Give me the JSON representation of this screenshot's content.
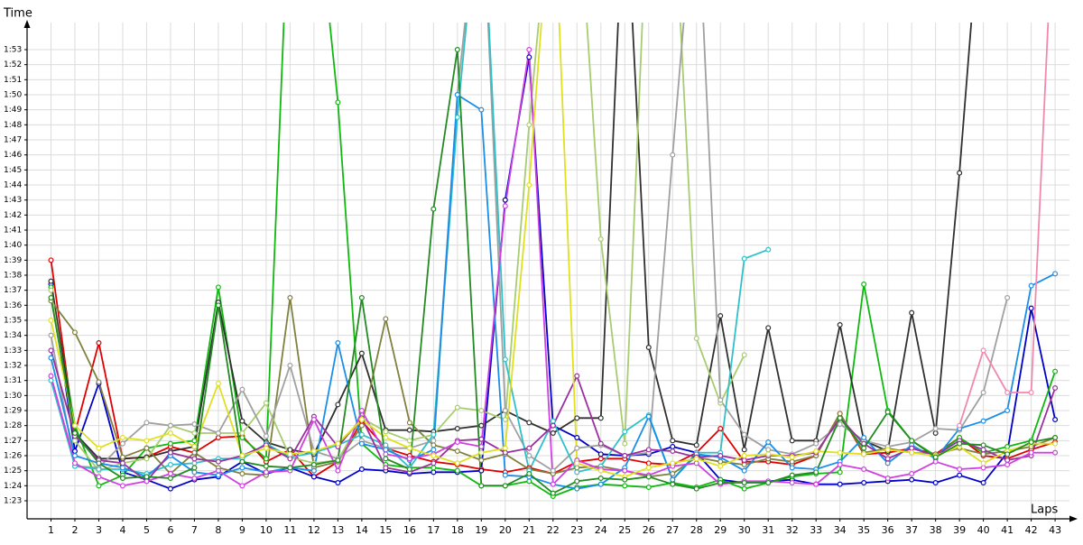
{
  "chart_data": {
    "type": "line",
    "y_label": "Time",
    "x_label": "Laps",
    "grid": true,
    "markers": true,
    "xlim": [
      0,
      43.6
    ],
    "ylim": [
      81.8,
      114.8
    ],
    "xticks": [
      1,
      2,
      3,
      4,
      5,
      6,
      7,
      8,
      9,
      10,
      11,
      12,
      13,
      14,
      15,
      16,
      17,
      18,
      19,
      20,
      21,
      22,
      23,
      24,
      25,
      26,
      27,
      28,
      29,
      30,
      31,
      32,
      33,
      34,
      35,
      36,
      37,
      38,
      39,
      40,
      41,
      42,
      43
    ],
    "yticks": [
      {
        "value": 83,
        "label": "1:23"
      },
      {
        "value": 84,
        "label": "1:24"
      },
      {
        "value": 85,
        "label": "1:25"
      },
      {
        "value": 86,
        "label": "1:26"
      },
      {
        "value": 87,
        "label": "1:27"
      },
      {
        "value": 88,
        "label": "1:28"
      },
      {
        "value": 89,
        "label": "1:29"
      },
      {
        "value": 90,
        "label": "1:30"
      },
      {
        "value": 91,
        "label": "1:31"
      },
      {
        "value": 92,
        "label": "1:32"
      },
      {
        "value": 93,
        "label": "1:33"
      },
      {
        "value": 94,
        "label": "1:34"
      },
      {
        "value": 95,
        "label": "1:35"
      },
      {
        "value": 96,
        "label": "1:36"
      },
      {
        "value": 97,
        "label": "1:37"
      },
      {
        "value": 98,
        "label": "1:38"
      },
      {
        "value": 99,
        "label": "1:39"
      },
      {
        "value": 100,
        "label": "1:40"
      },
      {
        "value": 101,
        "label": "1:41"
      },
      {
        "value": 102,
        "label": "1:42"
      },
      {
        "value": 103,
        "label": "1:43"
      },
      {
        "value": 104,
        "label": "1:44"
      },
      {
        "value": 105,
        "label": "1:45"
      },
      {
        "value": 106,
        "label": "1:46"
      },
      {
        "value": 107,
        "label": "1:47"
      },
      {
        "value": 108,
        "label": "1:48"
      },
      {
        "value": 109,
        "label": "1:49"
      },
      {
        "value": 110,
        "label": "1:50"
      },
      {
        "value": 111,
        "label": "1:51"
      },
      {
        "value": 112,
        "label": "1:52"
      },
      {
        "value": 113,
        "label": "1:53"
      }
    ],
    "x": [
      1,
      2,
      3,
      4,
      5,
      6,
      7,
      8,
      9,
      10,
      11,
      12,
      13,
      14,
      15,
      16,
      17,
      18,
      19,
      20,
      21,
      22,
      23,
      24,
      25,
      26,
      27,
      28,
      29,
      30,
      31,
      32,
      33,
      34,
      35,
      36,
      37,
      38,
      39,
      40,
      41,
      42,
      43
    ],
    "series": [
      {
        "color": "#e00000",
        "values": [
          99,
          87.5,
          93.5,
          85.8,
          85.9,
          86.6,
          86.2,
          87.2,
          87.3,
          85.6,
          86.4,
          84.6,
          85.6,
          88.3,
          86.5,
          86,
          85.6,
          85.4,
          85.1,
          84.9,
          85.2,
          84.8,
          85.6,
          85.8,
          85.8,
          85.5,
          85.4,
          86.2,
          87.8,
          85.6,
          85.6,
          85.4,
          86,
          88.8,
          86.1,
          86.2,
          86.5,
          86.1,
          87.2,
          86,
          85.8,
          86.4,
          86.9
        ]
      },
      {
        "color": "#0000c8",
        "values": [
          97.4,
          86.3,
          90.8,
          84.9,
          84.4,
          83.8,
          84.4,
          84.6,
          85.6,
          84.8,
          85.2,
          84.6,
          84.2,
          85.1,
          85,
          84.8,
          84.9,
          84.9,
          85,
          103,
          112.5,
          88,
          87.2,
          86.1,
          86,
          86.1,
          86.6,
          86.2,
          84.4,
          84.2,
          84.3,
          84.4,
          84.1,
          84.1,
          84.2,
          84.3,
          84.4,
          84.2,
          84.7,
          84.2,
          86.2,
          95.8,
          88.4
        ]
      },
      {
        "color": "#10b810",
        "values": [
          97.2,
          88,
          84,
          84.7,
          86.5,
          86.8,
          87,
          97.2,
          87.2,
          85.8,
          125,
          125,
          109.5,
          86.8,
          85.4,
          85.2,
          85.2,
          85,
          84,
          84,
          84.3,
          83.3,
          83.9,
          84.1,
          84,
          83.9,
          84.2,
          83.9,
          84.4,
          83.8,
          84.2,
          84.6,
          84.8,
          84.9,
          97.4,
          89,
          87,
          86,
          87.2,
          86.2,
          86.6,
          87,
          91.6
        ]
      },
      {
        "color": "#303030",
        "values": [
          97.6,
          87.5,
          85.8,
          85.8,
          85.9,
          86.3,
          86.6,
          96.2,
          88.3,
          86.9,
          86.4,
          86.1,
          89.4,
          92.8,
          87.7,
          87.7,
          87.6,
          87.8,
          88,
          89,
          88.2,
          87.5,
          88.5,
          88.5,
          125,
          93.2,
          87,
          86.7,
          95.3,
          86.4,
          94.5,
          87,
          87,
          94.7,
          87,
          86.3,
          95.5,
          87.5,
          104.8,
          125,
          null,
          null,
          null
        ]
      },
      {
        "color": "#808040",
        "values": [
          96.3,
          94.2,
          90.9,
          85.9,
          86.5,
          84.8,
          86.2,
          85.2,
          84.8,
          84.7,
          96.5,
          85.2,
          85.6,
          88,
          95.1,
          88.2,
          86.7,
          86.3,
          85.7,
          86.1,
          85.1,
          84.8,
          85.2,
          85.3,
          85,
          84.6,
          84.8,
          85.9,
          85.6,
          85.4,
          85.8,
          85.6,
          86,
          88.8,
          86.2,
          86.5,
          86.2,
          86.1,
          86.5,
          86.1,
          86.3,
          86.6,
          87.2
        ]
      },
      {
        "color": "#a8cc70",
        "values": [
          97,
          87,
          85,
          85.5,
          85.8,
          88,
          87.5,
          87.5,
          87.5,
          89.5,
          85.9,
          85.5,
          85.7,
          88.5,
          87.6,
          87,
          87.4,
          89.2,
          89,
          88.4,
          108,
          125,
          125,
          100.4,
          86.8,
          125,
          125,
          93.8,
          89.5,
          92.7,
          null,
          null,
          null,
          null,
          null,
          null,
          null,
          null,
          null,
          null,
          null,
          null,
          null
        ]
      },
      {
        "color": "#a0a0a0",
        "values": [
          94,
          85.3,
          85.2,
          86.8,
          88.2,
          88,
          88.1,
          87.5,
          90.4,
          87.3,
          92,
          86.3,
          85.8,
          87,
          86.5,
          86.5,
          87,
          110,
          125,
          89,
          86,
          85,
          86.5,
          86.7,
          86,
          86.2,
          106,
          125,
          89.7,
          87.4,
          86.4,
          86.1,
          86.8,
          88.1,
          87,
          86.6,
          86.9,
          87.8,
          87.7,
          90.2,
          96.5,
          null,
          null
        ]
      },
      {
        "color": "#30c0c8",
        "values": [
          91,
          85.3,
          85.1,
          85.1,
          84.8,
          85.4,
          85.5,
          85.8,
          85.8,
          86.8,
          85.9,
          86.2,
          86.7,
          87.4,
          86.7,
          85.2,
          87.4,
          108.5,
          125,
          92.4,
          85,
          88.3,
          84.9,
          85.3,
          87.6,
          88.7,
          84.4,
          86.2,
          86.2,
          99.1,
          99.7,
          null,
          null,
          null,
          null,
          null,
          null,
          null,
          null,
          null,
          null,
          null,
          null
        ]
      },
      {
        "color": "#1a8ee8",
        "values": [
          92.5,
          86,
          85.5,
          85.2,
          84.6,
          86,
          84.9,
          84.7,
          85.2,
          84.9,
          85.2,
          85,
          93.5,
          86.8,
          86.4,
          85.7,
          86.4,
          110,
          109,
          84.7,
          84.6,
          84.1,
          83.8,
          84.1,
          85.2,
          88.6,
          84.4,
          86.1,
          85.9,
          85,
          86.9,
          85.2,
          85.1,
          85.6,
          87.2,
          85.5,
          86.7,
          85.8,
          87.8,
          88.3,
          89,
          97.3,
          98.1
        ]
      },
      {
        "color": "#9a30a0",
        "values": [
          93,
          87.3,
          85.7,
          85.5,
          84.3,
          86.2,
          85.8,
          85.6,
          86,
          86.7,
          85.8,
          88.6,
          86.6,
          88.5,
          85.2,
          84.9,
          85.5,
          87,
          87.1,
          86.2,
          86.5,
          88,
          91.3,
          86.8,
          86,
          86.4,
          86.3,
          85.9,
          86,
          85.7,
          86,
          86,
          86.2,
          88.5,
          86.8,
          85.8,
          86.5,
          86,
          87,
          86.4,
          85.7,
          86,
          90.5
        ]
      },
      {
        "color": "#d040e0",
        "values": [
          91.3,
          85.5,
          84.6,
          84,
          84.3,
          84.8,
          84.5,
          85,
          84,
          84.9,
          85,
          88.4,
          85,
          89,
          86.1,
          85.8,
          86.1,
          86.9,
          86.6,
          102.6,
          113,
          84.1,
          85.7,
          85.1,
          85,
          84.7,
          85.3,
          85.5,
          84.1,
          84.3,
          84.3,
          84.2,
          84.1,
          85.4,
          85.1,
          84.5,
          84.8,
          85.6,
          85.1,
          85.2,
          85.4,
          86.2,
          86.2
        ]
      },
      {
        "color": "#e0e020",
        "values": [
          95,
          88,
          86.5,
          87.2,
          87,
          87.5,
          86.6,
          90.8,
          86,
          86.5,
          86.1,
          86.3,
          86.8,
          88.4,
          87.2,
          86.5,
          86,
          85.5,
          86.2,
          86.5,
          104,
          125,
          85.5,
          85,
          84.6,
          85.2,
          85.5,
          85.8,
          85.3,
          86,
          86.1,
          85.9,
          86.3,
          86.2,
          86.1,
          86.4,
          86.2,
          86,
          86.6,
          85.5,
          86.3,
          86.8,
          86.8
        ]
      },
      {
        "color": "#f088b0",
        "values": [
          null,
          null,
          null,
          null,
          null,
          null,
          null,
          null,
          null,
          null,
          null,
          null,
          null,
          null,
          null,
          null,
          null,
          null,
          null,
          null,
          null,
          null,
          null,
          null,
          null,
          null,
          null,
          null,
          null,
          null,
          null,
          null,
          null,
          null,
          null,
          null,
          null,
          null,
          88,
          93,
          90.2,
          90.2,
          125
        ]
      },
      {
        "color": "#228b22",
        "values": [
          96.5,
          87.5,
          85.5,
          84.5,
          84.6,
          84.5,
          85.2,
          96,
          85.6,
          85.3,
          85.2,
          85.4,
          85.7,
          96.5,
          85.8,
          85.1,
          102.4,
          113,
          84,
          84,
          84.8,
          83.5,
          84.3,
          84.5,
          84.4,
          84.6,
          84.1,
          83.8,
          84.2,
          84.2,
          84.2,
          84.7,
          84.9,
          88.5,
          86.5,
          88.9,
          87,
          85.9,
          86.8,
          86.7,
          86.1,
          86.9,
          87.2
        ]
      }
    ]
  }
}
